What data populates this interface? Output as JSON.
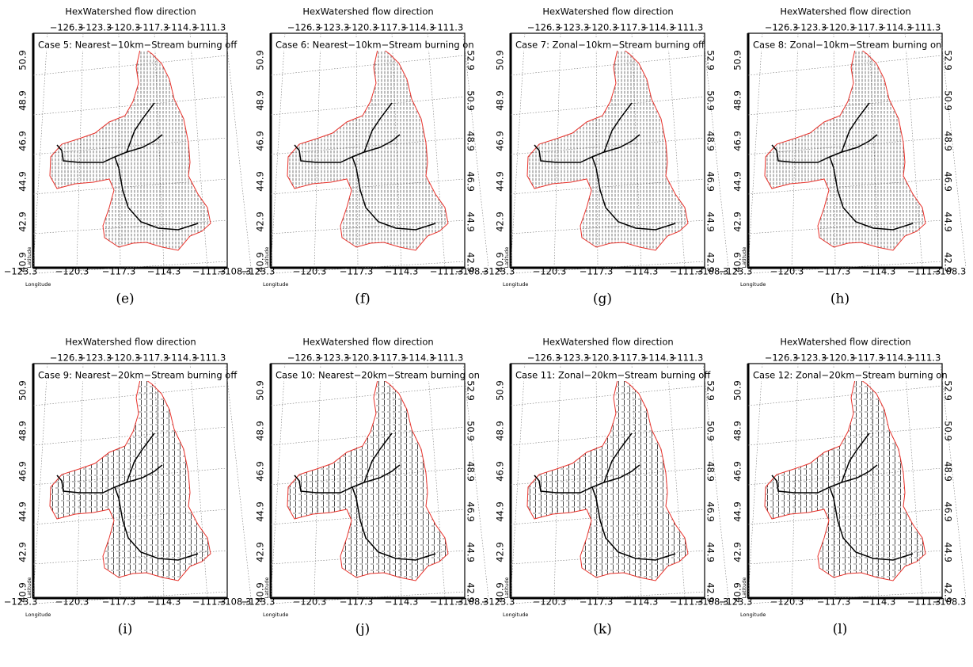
{
  "axes": {
    "top_ticks": [
      "−126.3",
      "−123.3",
      "−120.3",
      "−117.3",
      "−114.3",
      "−111.3"
    ],
    "bottom_ticks": [
      "−123.3",
      "−120.3",
      "−117.3",
      "−114.3",
      "−111.3",
      "−108.3"
    ],
    "left_ticks": [
      "50.9",
      "48.9",
      "46.9",
      "44.9",
      "42.9",
      "40.9"
    ],
    "right_ticks": [
      "52.9",
      "50.9",
      "48.9",
      "46.9",
      "44.9",
      "42.9"
    ],
    "x_label": "Longitude",
    "y_label": "Latitude"
  },
  "panels": [
    {
      "title": "HexWatershed flow direction",
      "case": "Case 5: Nearest−10km−Stream burning off",
      "caption": "(e)"
    },
    {
      "title": "HexWatershed flow direction",
      "case": "Case 6: Nearest−10km−Stream burning on",
      "caption": "(f)"
    },
    {
      "title": "HexWatershed flow direction",
      "case": "Case 7: Zonal−10km−Stream burning off",
      "caption": "(g)"
    },
    {
      "title": "HexWatershed flow direction",
      "case": "Case 8: Zonal−10km−Stream burning on",
      "caption": "(h)"
    },
    {
      "title": "HexWatershed flow direction",
      "case": "Case 9: Nearest−20km−Stream burning off",
      "caption": "(i)"
    },
    {
      "title": "HexWatershed flow direction",
      "case": "Case 10: Nearest−20km−Stream burning on",
      "caption": "(j)"
    },
    {
      "title": "HexWatershed flow direction",
      "case": "Case 11: Zonal−20km−Stream burning off",
      "caption": "(k)"
    },
    {
      "title": "HexWatershed flow direction",
      "case": "Case 12: Zonal−20km−Stream burning on",
      "caption": "(l)"
    }
  ]
}
